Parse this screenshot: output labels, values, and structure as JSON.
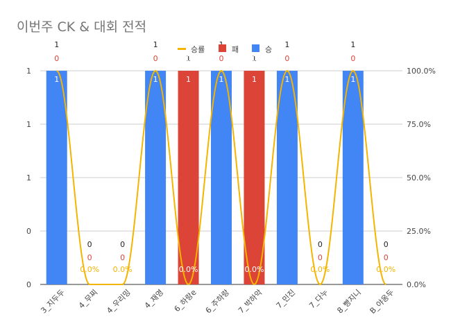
{
  "chart_data": {
    "type": "bar",
    "title": "이번주 CK & 대회 전적",
    "categories": [
      "3_지두두",
      "4_무찌",
      "4_우리밍",
      "4_재영",
      "6_하랑e",
      "6_주하랑",
      "7_박하악",
      "7_민진",
      "7_다누",
      "8_빵지니",
      "B_야옹두"
    ],
    "series": [
      {
        "name": "승",
        "values": [
          1,
          0,
          0,
          1,
          0,
          1,
          0,
          1,
          0,
          1,
          0
        ],
        "color": "#4285f4"
      },
      {
        "name": "패",
        "values": [
          0,
          0,
          0,
          0,
          1,
          0,
          1,
          0,
          0,
          0,
          0
        ],
        "color": "#db4437"
      },
      {
        "name": "승률",
        "values": [
          1.0,
          0.0,
          0.0,
          1.0,
          0.0,
          1.0,
          0.0,
          1.0,
          0.0,
          1.0,
          0.0
        ],
        "color": "#f4b400",
        "axis": "right",
        "chart_type": "line"
      }
    ],
    "left_axis": {
      "ticks": [
        "0",
        "0",
        "1",
        "1",
        "1"
      ],
      "range": [
        0,
        1
      ]
    },
    "right_axis": {
      "ticks": [
        "0.0%",
        "25.0%",
        "50.0%",
        "75.0%",
        "100.0%"
      ],
      "range": [
        0,
        1
      ]
    },
    "legend_position": "top",
    "legend_order": [
      "승률",
      "패",
      "승"
    ],
    "grid": true
  }
}
